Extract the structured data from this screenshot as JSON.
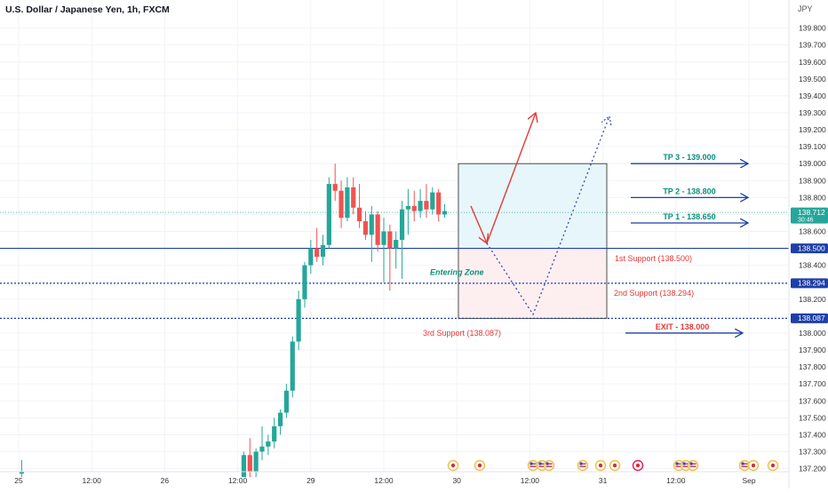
{
  "header": {
    "symbol_title": "U.S. Dollar / Japanese Yen, 1h, FXCM",
    "currency": "JPY"
  },
  "colors": {
    "up": "#26a69a",
    "down": "#ef5350",
    "blue": "#1e3fa8",
    "red_annot": "#e53935",
    "teal_text": "#0b8f7a"
  },
  "price_axis": {
    "ticks": [
      "139.800",
      "139.700",
      "139.600",
      "139.500",
      "139.400",
      "139.300",
      "139.200",
      "139.100",
      "139.000",
      "138.900",
      "138.800",
      "138.700",
      "138.600",
      "138.500",
      "138.400",
      "138.300",
      "138.200",
      "138.100",
      "138.000",
      "137.900",
      "137.800",
      "137.700",
      "137.600",
      "137.500",
      "137.400",
      "137.300",
      "137.200"
    ],
    "badges": [
      {
        "name": "current-price-badge",
        "price": 138.712,
        "label": "138.712",
        "sub": "30:46",
        "color": "#26a69a"
      },
      {
        "name": "price-badge-138500",
        "price": 138.5,
        "label": "138.500",
        "color": "#1e3fa8"
      },
      {
        "name": "price-badge-138294",
        "price": 138.294,
        "label": "138.294",
        "color": "#1e3fa8"
      },
      {
        "name": "price-badge-138087",
        "price": 138.087,
        "label": "138.087",
        "color": "#1e3fa8"
      }
    ]
  },
  "time_axis": {
    "labels": [
      {
        "label": "25",
        "slot": 0
      },
      {
        "label": "12:00",
        "slot": 12
      },
      {
        "label": "26",
        "slot": 24
      },
      {
        "label": "12:00",
        "slot": 36
      },
      {
        "label": "29",
        "slot": 48
      },
      {
        "label": "12:00",
        "slot": 60
      },
      {
        "label": "30",
        "slot": 72
      },
      {
        "label": "12:00",
        "slot": 84
      },
      {
        "label": "31",
        "slot": 96
      },
      {
        "label": "12:00",
        "slot": 108
      },
      {
        "label": "Sep",
        "slot": 120
      }
    ]
  },
  "chart_data": {
    "type": "candlestick",
    "title": "U.S. Dollar / Japanese Yen, 1h, FXCM",
    "ylim": [
      137.15,
      139.95
    ],
    "candles": [
      {
        "slot": 0.5,
        "o": 137.17,
        "h": 137.25,
        "l": 137.15,
        "c": 137.18
      },
      {
        "slot": 37,
        "o": 137.15,
        "h": 137.3,
        "l": 137.15,
        "c": 137.28
      },
      {
        "slot": 38,
        "o": 137.28,
        "h": 137.38,
        "l": 137.15,
        "c": 137.18
      },
      {
        "slot": 39,
        "o": 137.18,
        "h": 137.32,
        "l": 137.15,
        "c": 137.3
      },
      {
        "slot": 40,
        "o": 137.3,
        "h": 137.45,
        "l": 137.25,
        "c": 137.33
      },
      {
        "slot": 41,
        "o": 137.33,
        "h": 137.4,
        "l": 137.28,
        "c": 137.36
      },
      {
        "slot": 42,
        "o": 137.36,
        "h": 137.5,
        "l": 137.32,
        "c": 137.45
      },
      {
        "slot": 43,
        "o": 137.45,
        "h": 137.55,
        "l": 137.4,
        "c": 137.53
      },
      {
        "slot": 44,
        "o": 137.53,
        "h": 137.7,
        "l": 137.5,
        "c": 137.66
      },
      {
        "slot": 45,
        "o": 137.66,
        "h": 137.98,
        "l": 137.62,
        "c": 137.95
      },
      {
        "slot": 46,
        "o": 137.95,
        "h": 138.25,
        "l": 137.9,
        "c": 138.2
      },
      {
        "slot": 47,
        "o": 138.2,
        "h": 138.42,
        "l": 138.15,
        "c": 138.4
      },
      {
        "slot": 48,
        "o": 138.4,
        "h": 138.55,
        "l": 138.35,
        "c": 138.5
      },
      {
        "slot": 49,
        "o": 138.5,
        "h": 138.62,
        "l": 138.42,
        "c": 138.45
      },
      {
        "slot": 50,
        "o": 138.45,
        "h": 138.58,
        "l": 138.4,
        "c": 138.52
      },
      {
        "slot": 51,
        "o": 138.52,
        "h": 138.92,
        "l": 138.5,
        "c": 138.88
      },
      {
        "slot": 52,
        "o": 138.88,
        "h": 139.0,
        "l": 138.78,
        "c": 138.84
      },
      {
        "slot": 53,
        "o": 138.84,
        "h": 138.9,
        "l": 138.62,
        "c": 138.68
      },
      {
        "slot": 54,
        "o": 138.68,
        "h": 138.92,
        "l": 138.66,
        "c": 138.86
      },
      {
        "slot": 55,
        "o": 138.86,
        "h": 138.92,
        "l": 138.7,
        "c": 138.74
      },
      {
        "slot": 56,
        "o": 138.74,
        "h": 138.88,
        "l": 138.62,
        "c": 138.66
      },
      {
        "slot": 57,
        "o": 138.66,
        "h": 138.72,
        "l": 138.55,
        "c": 138.58
      },
      {
        "slot": 58,
        "o": 138.58,
        "h": 138.75,
        "l": 138.42,
        "c": 138.7
      },
      {
        "slot": 59,
        "o": 138.7,
        "h": 138.72,
        "l": 138.48,
        "c": 138.52
      },
      {
        "slot": 60,
        "o": 138.52,
        "h": 138.68,
        "l": 138.3,
        "c": 138.6
      },
      {
        "slot": 61,
        "o": 138.6,
        "h": 138.64,
        "l": 138.25,
        "c": 138.5
      },
      {
        "slot": 62,
        "o": 138.5,
        "h": 138.6,
        "l": 138.38,
        "c": 138.55
      },
      {
        "slot": 63,
        "o": 138.55,
        "h": 138.78,
        "l": 138.32,
        "c": 138.73
      },
      {
        "slot": 64,
        "o": 138.73,
        "h": 138.85,
        "l": 138.58,
        "c": 138.75
      },
      {
        "slot": 65,
        "o": 138.75,
        "h": 138.84,
        "l": 138.66,
        "c": 138.72
      },
      {
        "slot": 66,
        "o": 138.72,
        "h": 138.85,
        "l": 138.68,
        "c": 138.78
      },
      {
        "slot": 67,
        "o": 138.78,
        "h": 138.88,
        "l": 138.68,
        "c": 138.73
      },
      {
        "slot": 68,
        "o": 138.73,
        "h": 138.86,
        "l": 138.7,
        "c": 138.83
      },
      {
        "slot": 69,
        "o": 138.83,
        "h": 138.85,
        "l": 138.66,
        "c": 138.7
      },
      {
        "slot": 70,
        "o": 138.7,
        "h": 138.76,
        "l": 138.68,
        "c": 138.72
      }
    ]
  },
  "zones": [
    {
      "name": "profit-zone",
      "x1": 516,
      "x2": 683,
      "top": 139.0,
      "bottom": 138.5,
      "fill": "#e6f6fb"
    },
    {
      "name": "entry-zone",
      "x1": 516,
      "x2": 683,
      "top": 138.5,
      "bottom": 138.087,
      "fill": "#fdeff0"
    }
  ],
  "h_lines": [
    {
      "name": "support-line-138500",
      "price": 138.5,
      "dash": false,
      "color": "#1e3fa8"
    },
    {
      "name": "support-line-138294",
      "price": 138.294,
      "dash": true,
      "color": "#1e3fa8"
    },
    {
      "name": "support-line-138087",
      "price": 138.087,
      "dash": true,
      "color": "#1e3fa8"
    },
    {
      "name": "current-price-line",
      "price": 138.712,
      "dash": true,
      "color": "#26a69a"
    }
  ],
  "annotations": {
    "tp_targets": [
      {
        "name": "tp3-label",
        "text": "TP 3 - 139.000",
        "price": 139.0
      },
      {
        "name": "tp2-label",
        "text": "TP 2 - 138.800",
        "price": 138.8
      },
      {
        "name": "tp1-label",
        "text": "TP 1 - 138.650",
        "price": 138.65
      }
    ],
    "exit": {
      "text": "EXIT - 138.000",
      "price": 138.0
    },
    "supports": [
      {
        "name": "support-1-label",
        "text": "1st Support (138.500)"
      },
      {
        "name": "support-2-label",
        "text": "2nd Support (138.294)"
      },
      {
        "name": "support-3-label",
        "text": "3rd Support (138.087)"
      }
    ],
    "entering_zone": "Entering Zone"
  },
  "events": [
    {
      "x": 510,
      "kind": "red"
    },
    {
      "x": 540,
      "kind": "red"
    },
    {
      "x": 600,
      "kind": "flag"
    },
    {
      "x": 610,
      "kind": "flag"
    },
    {
      "x": 618,
      "kind": "flag"
    },
    {
      "x": 656,
      "kind": "flag"
    },
    {
      "x": 676,
      "kind": "red"
    },
    {
      "x": 692,
      "kind": "red"
    },
    {
      "x": 718,
      "kind": "pink"
    },
    {
      "x": 764,
      "kind": "flag"
    },
    {
      "x": 772,
      "kind": "flag"
    },
    {
      "x": 780,
      "kind": "flag"
    },
    {
      "x": 838,
      "kind": "flag"
    },
    {
      "x": 848,
      "kind": "red"
    },
    {
      "x": 870,
      "kind": "red"
    }
  ]
}
